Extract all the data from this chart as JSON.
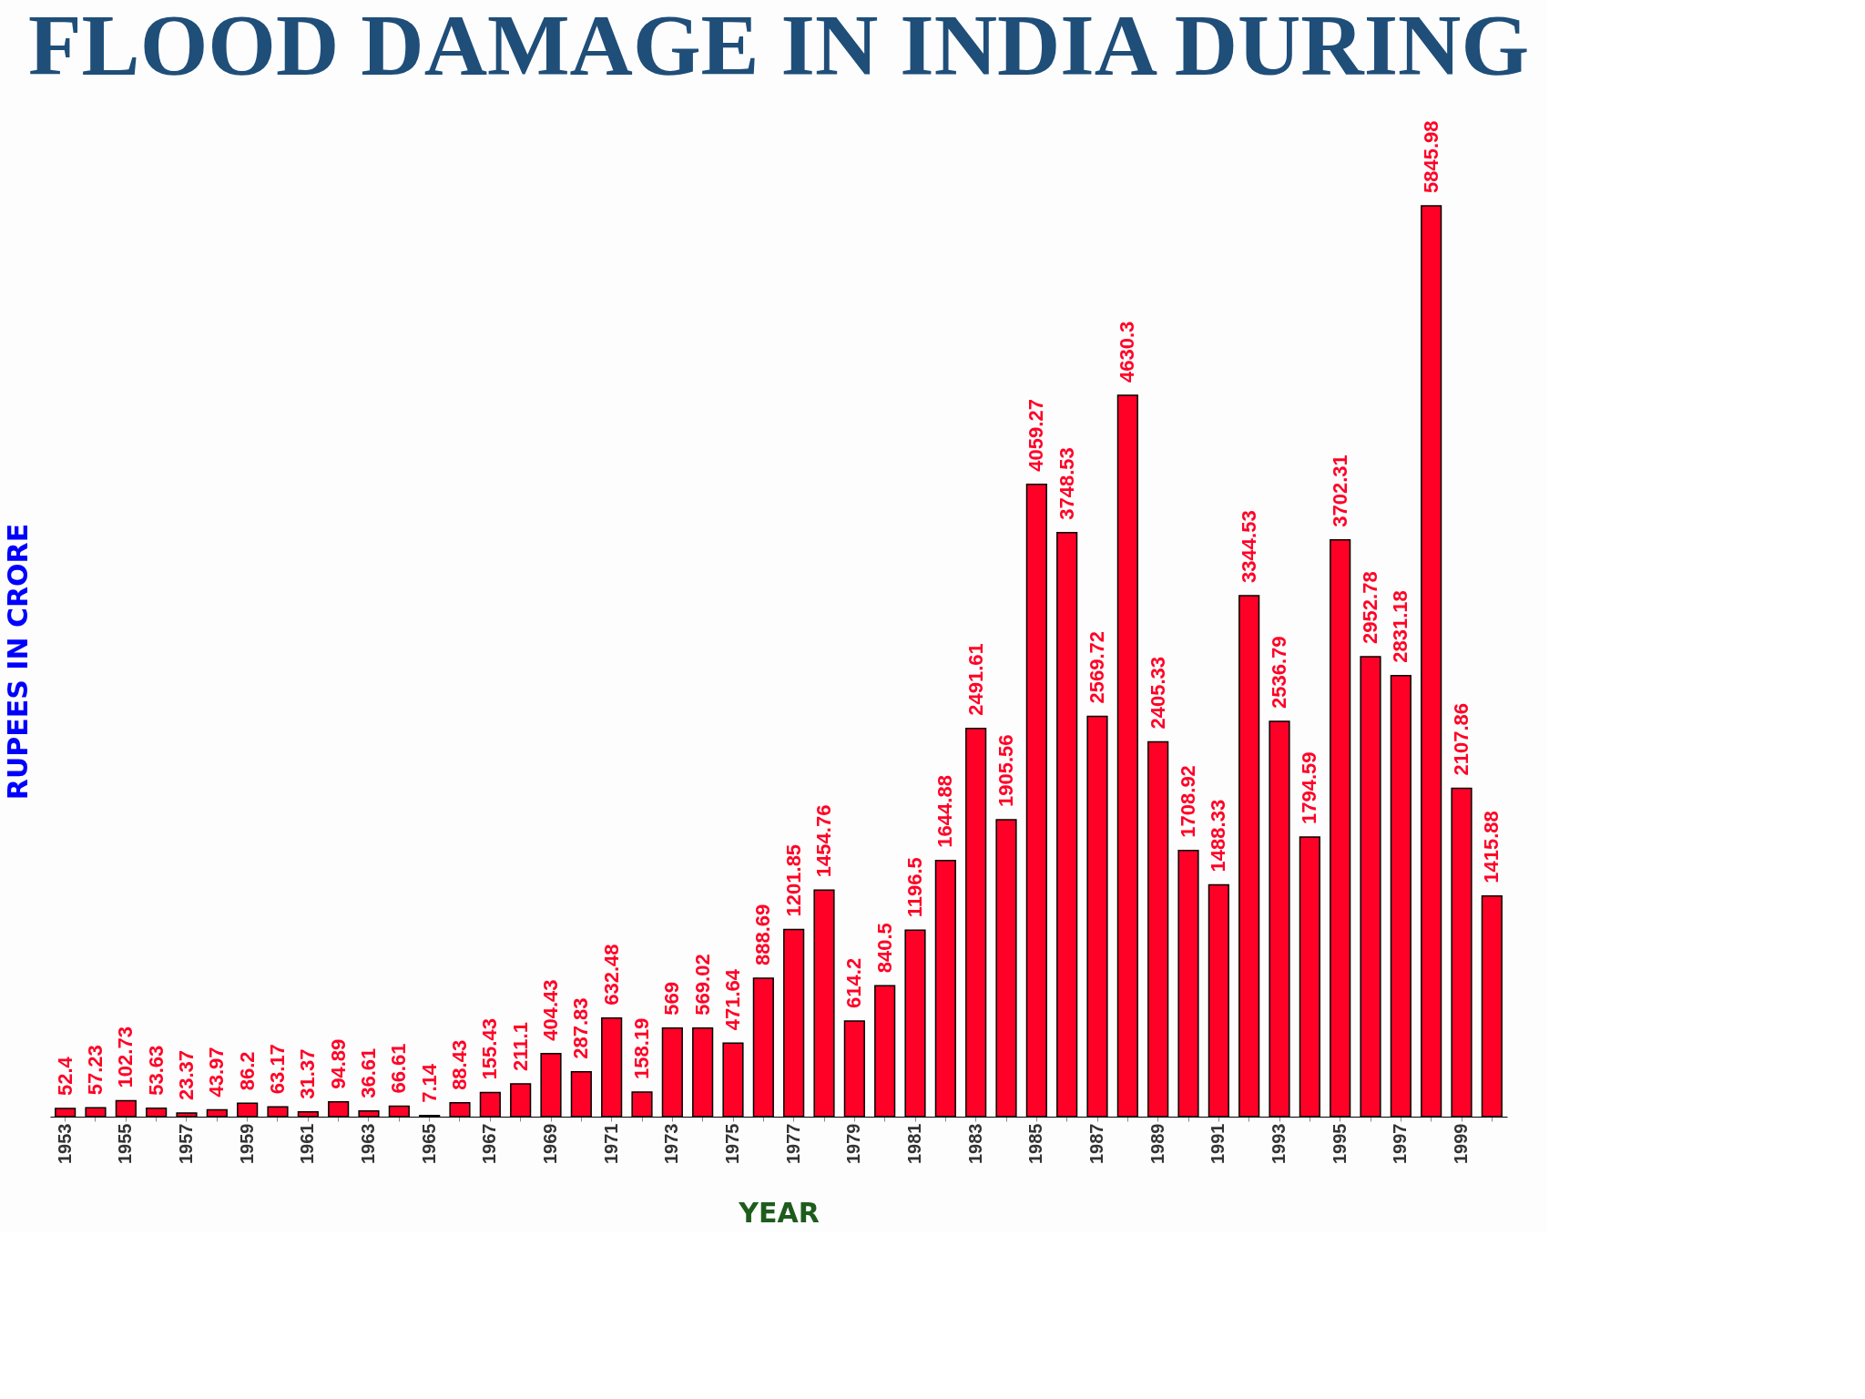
{
  "chart_data": {
    "type": "bar",
    "title": "FLOOD DAMAGE  IN INDIA DURING",
    "xlabel": "YEAR",
    "ylabel": "RUPEES IN CRORE",
    "categories": [
      "1953",
      null,
      "1955",
      null,
      "1957",
      null,
      "1959",
      null,
      "1961",
      null,
      "1963",
      null,
      "1965",
      null,
      "1967",
      null,
      "1969",
      null,
      "1971",
      null,
      "1973",
      null,
      "1975",
      null,
      "1977",
      null,
      "1979",
      null,
      "1981",
      null,
      "1983",
      null,
      "1985",
      null,
      "1987",
      null,
      "1989",
      null,
      "1991",
      null,
      "1993",
      null,
      "1995",
      null,
      "1997",
      null,
      "1999",
      null
    ],
    "values": [
      52.4,
      57.23,
      102.73,
      53.63,
      23.37,
      43.97,
      86.2,
      63.17,
      31.37,
      94.89,
      36.61,
      66.61,
      7.14,
      88.43,
      155.43,
      211.1,
      404.43,
      287.83,
      632.48,
      158.19,
      569,
      569.02,
      471.64,
      888.69,
      1201.85,
      1454.76,
      614.2,
      840.5,
      1196.5,
      1644.88,
      2491.61,
      1905.56,
      4059.27,
      3748.53,
      2569.72,
      4630.3,
      2405.33,
      1708.92,
      1488.33,
      3344.53,
      2536.79,
      1794.59,
      3702.31,
      2952.78,
      2831.18,
      5845.98,
      2107.86,
      1415.88
    ],
    "color": "#ff0026",
    "data_labels": true
  }
}
